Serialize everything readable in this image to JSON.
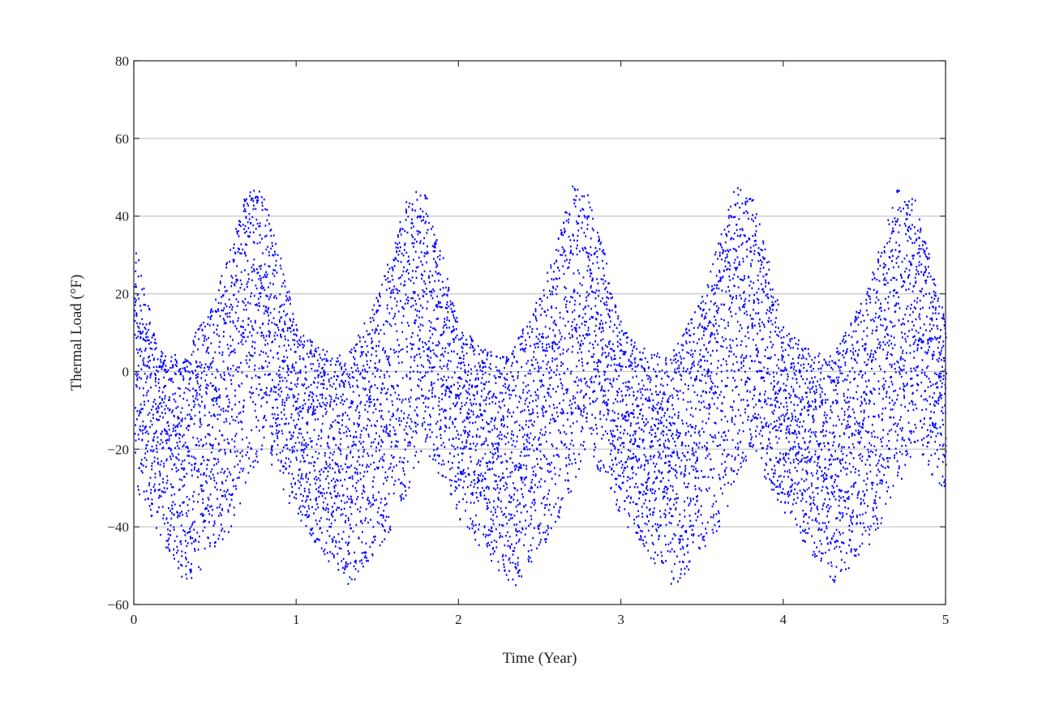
{
  "chart_data": {
    "type": "scatter",
    "title": "",
    "xlabel": "Time (Year)",
    "ylabel": "Thermal Load (°F)",
    "xlim": [
      0,
      5
    ],
    "ylim": [
      -60,
      80
    ],
    "x_ticks": [
      0,
      1,
      2,
      3,
      4,
      5
    ],
    "y_ticks": [
      -60,
      -40,
      -20,
      0,
      20,
      40,
      60,
      80
    ],
    "grid": "horizontal",
    "legend": "none",
    "series": [
      {
        "color": "#0000ff",
        "marker": "dot",
        "pattern": "yearly periodic",
        "period_years": 1,
        "upper_envelope": {
          "x": [
            0,
            0.15,
            0.3,
            0.5,
            0.7,
            0.8,
            0.9,
            1.0,
            1.15,
            1.3,
            1.5,
            1.7,
            1.8,
            1.9,
            2.0,
            2.15,
            2.3,
            2.5,
            2.7,
            2.8,
            2.9,
            3.0,
            3.15,
            3.3,
            3.5,
            3.7,
            3.8,
            3.9,
            4.0,
            4.15,
            4.3,
            4.5,
            4.7,
            4.8,
            4.9,
            5.0
          ],
          "y": [
            34,
            6,
            4,
            20,
            48,
            46,
            30,
            12,
            6,
            4,
            20,
            48,
            46,
            30,
            12,
            6,
            4,
            20,
            48,
            46,
            30,
            12,
            6,
            4,
            20,
            48,
            46,
            30,
            12,
            6,
            4,
            20,
            48,
            46,
            30,
            12
          ]
        },
        "lower_envelope": {
          "x": [
            0,
            0.33,
            0.6,
            0.8,
            1.0,
            1.33,
            1.6,
            1.8,
            2.0,
            2.33,
            2.6,
            2.8,
            3.0,
            3.33,
            3.6,
            3.8,
            4.0,
            4.33,
            4.6,
            4.8,
            5.0
          ],
          "y": [
            -30,
            -56,
            -40,
            -20,
            -38,
            -56,
            -40,
            -20,
            -38,
            -56,
            -40,
            -20,
            -38,
            -56,
            -40,
            -20,
            -38,
            -56,
            -40,
            -20,
            -32
          ]
        }
      }
    ]
  }
}
